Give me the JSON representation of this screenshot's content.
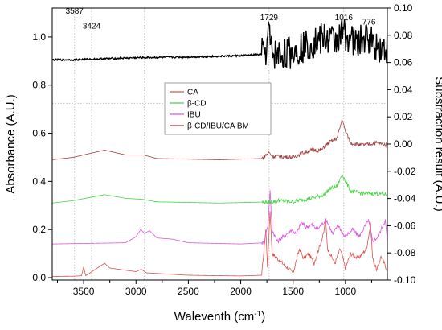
{
  "chart_data": {
    "type": "line",
    "xlabel": "Waleventh (cm",
    "xlabel_sup": "-1",
    "xlabel_close": ")",
    "ylabel": "Absorbance (A.U.)",
    "ylabel_right": "Substraction result (A.U.)",
    "xlim": [
      3800,
      600
    ],
    "ylim": [
      -0.01,
      1.12
    ],
    "ylim_right": [
      -0.1,
      0.1
    ],
    "x_ticks": [
      3500,
      3000,
      2500,
      2000,
      1500,
      1000
    ],
    "y_ticks": [
      0.0,
      0.2,
      0.4,
      0.6,
      0.8,
      1.0
    ],
    "y_right_ticks": [
      -0.1,
      -0.08,
      -0.06,
      -0.04,
      -0.02,
      0.0,
      0.02,
      0.04,
      0.06,
      0.08,
      0.1
    ],
    "grid": "dotted lines at 3587, 3424, 2920, 1729, 1016 cm-1 and at 0.03 (right axis)",
    "legend_position": "center",
    "colors": {
      "CA": "#d9534f",
      "beta_CD": "#46d646",
      "IBU": "#e055e0",
      "BM": "#a03c3c",
      "subtraction": "#000000",
      "grid": "#b8b8b8"
    },
    "series": [
      {
        "name": "CA",
        "axis": "left",
        "baseline": 0.005,
        "points": [
          [
            3800,
            0.005
          ],
          [
            3600,
            0.006
          ],
          [
            3520,
            0.008
          ],
          [
            3500,
            0.045
          ],
          [
            3480,
            0.008
          ],
          [
            3300,
            0.06
          ],
          [
            3250,
            0.04
          ],
          [
            3000,
            0.025
          ],
          [
            2950,
            0.035
          ],
          [
            2900,
            0.02
          ],
          [
            2500,
            0.01
          ],
          [
            2000,
            0.007
          ],
          [
            1800,
            0.01
          ],
          [
            1760,
            0.2
          ],
          [
            1745,
            0.05
          ],
          [
            1720,
            0.28
          ],
          [
            1700,
            0.1
          ],
          [
            1500,
            0.02
          ],
          [
            1440,
            0.12
          ],
          [
            1400,
            0.08
          ],
          [
            1350,
            0.1
          ],
          [
            1300,
            0.06
          ],
          [
            1210,
            0.18
          ],
          [
            1190,
            0.24
          ],
          [
            1170,
            0.12
          ],
          [
            1100,
            0.06
          ],
          [
            1050,
            0.12
          ],
          [
            1000,
            0.04
          ],
          [
            950,
            0.1
          ],
          [
            880,
            0.08
          ],
          [
            800,
            0.12
          ],
          [
            760,
            0.22
          ],
          [
            740,
            0.08
          ],
          [
            700,
            0.03
          ],
          [
            660,
            0.09
          ],
          [
            600,
            0.03
          ]
        ]
      },
      {
        "name": "IBU",
        "axis": "left",
        "baseline": 0.14,
        "points": [
          [
            3800,
            0.14
          ],
          [
            3100,
            0.145
          ],
          [
            3000,
            0.17
          ],
          [
            2955,
            0.2
          ],
          [
            2920,
            0.185
          ],
          [
            2870,
            0.195
          ],
          [
            2800,
            0.165
          ],
          [
            2650,
            0.16
          ],
          [
            2500,
            0.145
          ],
          [
            2000,
            0.14
          ],
          [
            1780,
            0.145
          ],
          [
            1740,
            0.22
          ],
          [
            1720,
            0.36
          ],
          [
            1700,
            0.2
          ],
          [
            1650,
            0.15
          ],
          [
            1510,
            0.2
          ],
          [
            1470,
            0.18
          ],
          [
            1420,
            0.23
          ],
          [
            1380,
            0.21
          ],
          [
            1320,
            0.22
          ],
          [
            1270,
            0.2
          ],
          [
            1230,
            0.22
          ],
          [
            1180,
            0.24
          ],
          [
            1120,
            0.18
          ],
          [
            1070,
            0.22
          ],
          [
            1010,
            0.17
          ],
          [
            930,
            0.2
          ],
          [
            870,
            0.17
          ],
          [
            780,
            0.24
          ],
          [
            740,
            0.15
          ],
          [
            690,
            0.17
          ],
          [
            620,
            0.24
          ],
          [
            600,
            0.15
          ]
        ]
      },
      {
        "name": "β-CD",
        "axis": "left",
        "baseline": 0.31,
        "points": [
          [
            3800,
            0.31
          ],
          [
            3600,
            0.32
          ],
          [
            3300,
            0.345
          ],
          [
            3100,
            0.33
          ],
          [
            2930,
            0.325
          ],
          [
            2800,
            0.315
          ],
          [
            2200,
            0.31
          ],
          [
            1700,
            0.315
          ],
          [
            1640,
            0.32
          ],
          [
            1500,
            0.315
          ],
          [
            1400,
            0.325
          ],
          [
            1320,
            0.33
          ],
          [
            1200,
            0.345
          ],
          [
            1150,
            0.37
          ],
          [
            1080,
            0.38
          ],
          [
            1030,
            0.43
          ],
          [
            1010,
            0.41
          ],
          [
            950,
            0.36
          ],
          [
            850,
            0.35
          ],
          [
            700,
            0.35
          ],
          [
            600,
            0.345
          ]
        ]
      },
      {
        "name": "β-CD/IBU/CA BM",
        "axis": "left",
        "baseline": 0.49,
        "points": [
          [
            3800,
            0.49
          ],
          [
            3600,
            0.5
          ],
          [
            3300,
            0.53
          ],
          [
            3100,
            0.51
          ],
          [
            2930,
            0.51
          ],
          [
            2800,
            0.495
          ],
          [
            2200,
            0.49
          ],
          [
            1800,
            0.495
          ],
          [
            1730,
            0.52
          ],
          [
            1700,
            0.505
          ],
          [
            1500,
            0.5
          ],
          [
            1400,
            0.52
          ],
          [
            1320,
            0.53
          ],
          [
            1230,
            0.53
          ],
          [
            1160,
            0.56
          ],
          [
            1080,
            0.58
          ],
          [
            1030,
            0.66
          ],
          [
            1010,
            0.62
          ],
          [
            950,
            0.56
          ],
          [
            850,
            0.55
          ],
          [
            700,
            0.56
          ],
          [
            600,
            0.55
          ]
        ]
      },
      {
        "name": "Substraction result",
        "axis": "right",
        "baseline": 0.062,
        "points": [
          [
            3800,
            0.062
          ],
          [
            3587,
            0.062
          ],
          [
            3424,
            0.0625
          ],
          [
            3000,
            0.0635
          ],
          [
            2500,
            0.064
          ],
          [
            2000,
            0.065
          ],
          [
            1780,
            0.066
          ],
          [
            1750,
            0.07
          ],
          [
            1729,
            0.086
          ],
          [
            1715,
            0.07
          ],
          [
            1690,
            0.066
          ],
          [
            1600,
            0.066
          ],
          [
            1500,
            0.068
          ],
          [
            1400,
            0.072
          ],
          [
            1300,
            0.075
          ],
          [
            1200,
            0.078
          ],
          [
            1100,
            0.076
          ],
          [
            1016,
            0.082
          ],
          [
            900,
            0.074
          ],
          [
            776,
            0.078
          ],
          [
            700,
            0.072
          ],
          [
            600,
            0.07
          ]
        ]
      }
    ],
    "annotations": [
      {
        "label": "3587",
        "x": 3587,
        "y_right": 0.096
      },
      {
        "label": "3424",
        "x": 3424,
        "y_right": 0.085
      },
      {
        "label": "1729",
        "x": 1729,
        "y_right": 0.091
      },
      {
        "label": "1016",
        "x": 1016,
        "y_right": 0.091
      },
      {
        "label": "776",
        "x": 776,
        "y_right": 0.088
      }
    ],
    "legend": [
      "CA",
      "β-CD",
      "IBU",
      "β-CD/IBU/CA BM"
    ]
  }
}
